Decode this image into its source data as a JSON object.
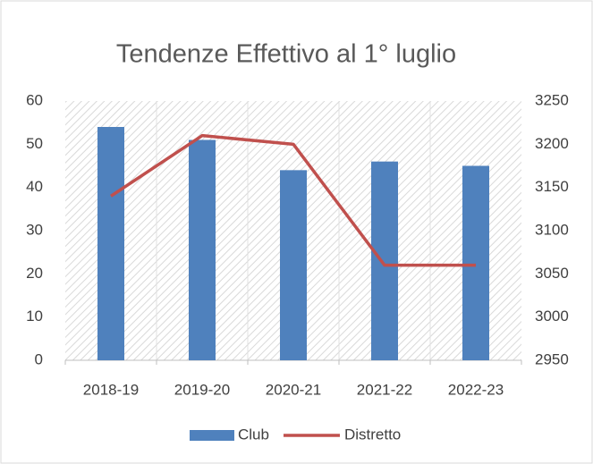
{
  "chart_data": {
    "type": "bar",
    "title": "Tendenze Effettivo al 1° luglio",
    "categories": [
      "2018-19",
      "2019-20",
      "2020-21",
      "2021-22",
      "2022-23"
    ],
    "series": [
      {
        "name": "Club",
        "type": "bar",
        "color": "#4f81bd",
        "values": [
          54,
          51,
          44,
          46,
          45
        ]
      },
      {
        "name": "Distretto",
        "type": "line",
        "axis": "y2",
        "color": "#c0504d",
        "values": [
          3140,
          3210,
          3200,
          3060,
          3060
        ]
      }
    ],
    "ylim": [
      0,
      60
    ],
    "yticks": [
      0,
      10,
      20,
      30,
      40,
      50,
      60
    ],
    "y2lim": [
      2950,
      3250
    ],
    "y2ticks": [
      2950,
      3000,
      3050,
      3100,
      3150,
      3200,
      3250
    ],
    "legend": "bottom"
  }
}
